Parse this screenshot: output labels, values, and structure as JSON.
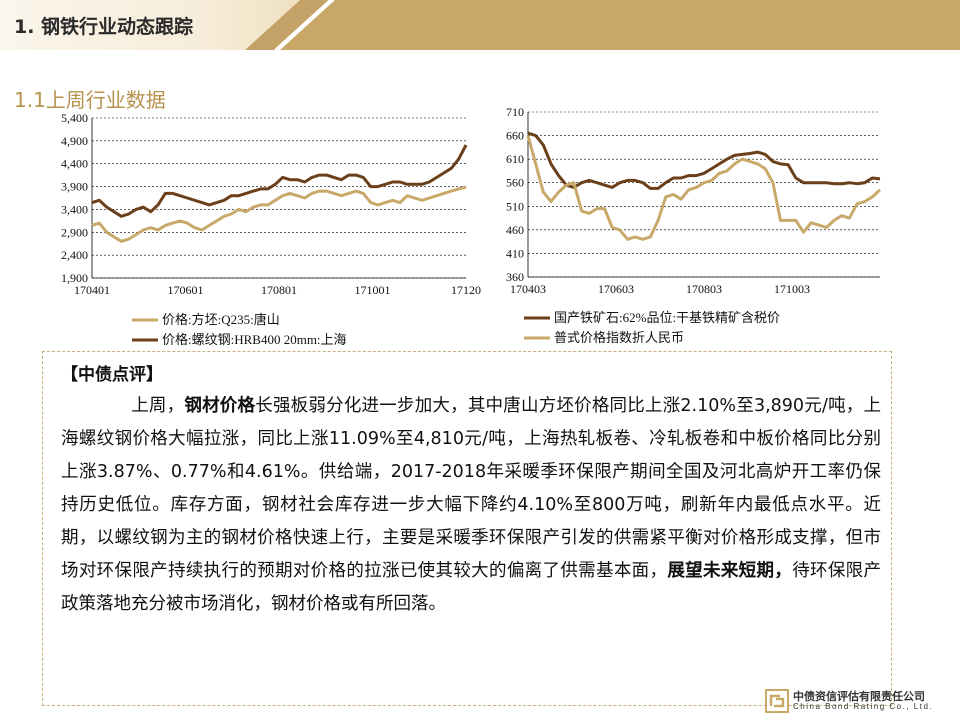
{
  "header": {
    "title": "1. 钢铁行业动态跟踪"
  },
  "section": {
    "title": "1.1上周行业数据"
  },
  "chart_data": [
    {
      "type": "line",
      "ylim": [
        1900,
        5400
      ],
      "yticks": [
        "1,900",
        "2,400",
        "2,900",
        "3,400",
        "3,900",
        "4,400",
        "4,900",
        "5,400"
      ],
      "xticks": [
        "170401",
        "170601",
        "170801",
        "171001",
        "17120"
      ],
      "grid": true,
      "legend_position": "bottom",
      "series": [
        {
          "name": "价格:方坯:Q235:唐山",
          "color": "#c8a96a",
          "values": [
            3050,
            3100,
            2900,
            2800,
            2700,
            2750,
            2850,
            2950,
            3000,
            2950,
            3050,
            3100,
            3150,
            3100,
            3000,
            2950,
            3050,
            3150,
            3250,
            3300,
            3400,
            3350,
            3450,
            3500,
            3500,
            3600,
            3700,
            3750,
            3700,
            3650,
            3750,
            3800,
            3800,
            3750,
            3700,
            3750,
            3800,
            3750,
            3550,
            3500,
            3550,
            3600,
            3550,
            3700,
            3650,
            3600,
            3650,
            3700,
            3750,
            3800,
            3850,
            3890
          ]
        },
        {
          "name": "价格:螺纹钢:HRB400  20mm:上海",
          "color": "#6b3f1a",
          "values": [
            3550,
            3600,
            3450,
            3350,
            3250,
            3300,
            3400,
            3450,
            3350,
            3500,
            3750,
            3750,
            3700,
            3650,
            3600,
            3550,
            3500,
            3550,
            3600,
            3700,
            3700,
            3750,
            3800,
            3850,
            3850,
            3950,
            4100,
            4050,
            4050,
            4000,
            4100,
            4150,
            4150,
            4100,
            4050,
            4150,
            4150,
            4100,
            3900,
            3900,
            3950,
            4000,
            4000,
            3950,
            3950,
            3950,
            4000,
            4100,
            4200,
            4300,
            4500,
            4810
          ]
        }
      ]
    },
    {
      "type": "line",
      "ylim": [
        360,
        710
      ],
      "yticks": [
        "360",
        "410",
        "460",
        "510",
        "560",
        "610",
        "660",
        "710"
      ],
      "xticks": [
        "170403",
        "170603",
        "170803",
        "171003"
      ],
      "grid": true,
      "legend_position": "bottom",
      "series": [
        {
          "name": "国产铁矿石:62%品位:干基铁精矿含税价",
          "color": "#6b3f1a",
          "values": [
            665,
            660,
            640,
            600,
            575,
            555,
            550,
            560,
            565,
            560,
            555,
            550,
            560,
            565,
            565,
            560,
            548,
            548,
            560,
            570,
            570,
            575,
            575,
            580,
            590,
            600,
            610,
            618,
            620,
            622,
            625,
            620,
            605,
            600,
            598,
            570,
            560,
            560,
            560,
            560,
            558,
            558,
            560,
            558,
            560,
            570,
            568
          ]
        },
        {
          "name": "普式价格指数折人民币",
          "color": "#c8a96a",
          "values": [
            660,
            600,
            540,
            520,
            540,
            555,
            560,
            500,
            495,
            505,
            505,
            465,
            460,
            440,
            445,
            440,
            445,
            480,
            530,
            535,
            525,
            545,
            550,
            560,
            565,
            580,
            585,
            600,
            610,
            605,
            600,
            590,
            560,
            480,
            480,
            480,
            455,
            475,
            470,
            465,
            480,
            490,
            485,
            515,
            520,
            530,
            545
          ]
        }
      ]
    }
  ],
  "comment": {
    "heading": "【中债点评】",
    "p1_before": "上周，",
    "p1_bold1": "钢材价格",
    "p1_mid": "长强板弱分化进一步加大，其中唐山方坯价格同比上涨2.10%至3,890元/吨，上海螺纹钢价格大幅拉涨，同比上涨11.09%至4,810元/吨，上海热轧板卷、冷轧板卷和中板价格同比分别上涨3.87%、0.77%和4.61%。供给端，2017-2018年采暖季环保限产期间全国及河北高炉开工率仍保持历史低位。库存方面，钢材社会库存进一步大幅下降约4.10%至800万吨，刷新年内最低点水平。近期，以螺纹钢为主的钢材价格快速上行，主要是采暖季环保限产引发的供需紧平衡对价格形成支撑，但市场对环保限产持续执行的预期对价格的拉涨已使其较大的偏离了供需基本面，",
    "p1_bold2": "展望未来短期，",
    "p1_after": "待环保限产政策落地充分被市场消化，钢材价格或有所回落。"
  },
  "logo": {
    "name_cn": "中债资信评估有限责任公司",
    "name_en": "China Bond Rating Co., Ltd."
  }
}
